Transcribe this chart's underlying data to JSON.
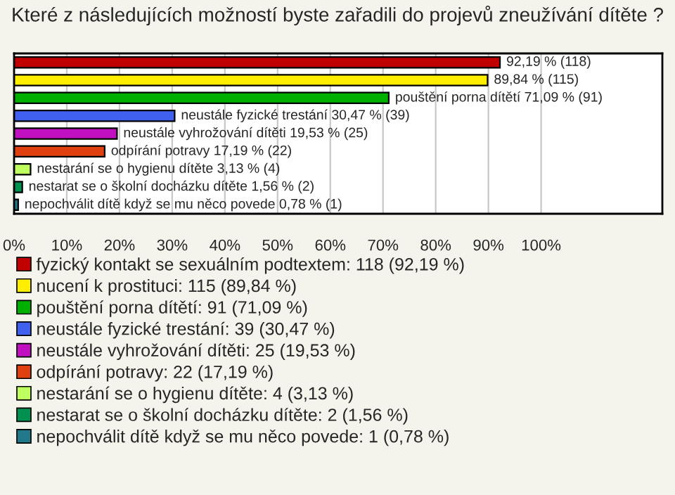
{
  "chart_data": {
    "type": "bar",
    "orientation": "horizontal",
    "title": "Které z následujících možností byste zařadili do projevů zneužívání dítěte ?",
    "categories": [
      null,
      null,
      null,
      null,
      null,
      null,
      null,
      null,
      null
    ],
    "series": [
      {
        "name": "fyzický kontakt se sexuálním podtextem: 118 (92,19 %)",
        "color": "#c00000",
        "values": [
          92.19,
          null,
          null,
          null,
          null,
          null,
          null,
          null,
          null
        ],
        "value_labels": [
          "92,19 % (118)",
          null,
          null,
          null,
          null,
          null,
          null,
          null,
          null
        ]
      },
      {
        "name": "nucení k prostituci: 115 (89,84 %)",
        "color": "#ffee00",
        "values": [
          null,
          89.84,
          null,
          null,
          null,
          null,
          null,
          null,
          null
        ],
        "value_labels": [
          null,
          "89,84 % (115)",
          null,
          null,
          null,
          null,
          null,
          null,
          null
        ]
      },
      {
        "name": "pouštění porna dítětí: 91 (71,09 %)",
        "color": "#00b000",
        "values": [
          null,
          null,
          71.09,
          null,
          null,
          null,
          null,
          null,
          null
        ],
        "value_labels": [
          null,
          null,
          "pouštění porna dítětí 71,09 % (91)",
          null,
          null,
          null,
          null,
          null,
          null
        ]
      },
      {
        "name": "neustále fyzické trestání: 39 (30,47 %)",
        "color": "#4060f0",
        "values": [
          null,
          null,
          null,
          30.47,
          null,
          null,
          null,
          null,
          null
        ],
        "value_labels": [
          null,
          null,
          null,
          "neustále fyzické trestání 30,47 % (39)",
          null,
          null,
          null,
          null,
          null
        ]
      },
      {
        "name": "neustále vyhrožování dítěti: 25 (19,53 %)",
        "color": "#c010c0",
        "values": [
          null,
          null,
          null,
          null,
          19.53,
          null,
          null,
          null,
          null
        ],
        "value_labels": [
          null,
          null,
          null,
          null,
          "neustále vyhrožování dítěti 19,53 % (25)",
          null,
          null,
          null,
          null
        ]
      },
      {
        "name": "odpírání potravy: 22 (17,19 %)",
        "color": "#e04010",
        "values": [
          null,
          null,
          null,
          null,
          null,
          17.19,
          null,
          null,
          null
        ],
        "value_labels": [
          null,
          null,
          null,
          null,
          null,
          "odpírání potravy 17,19 % (22)",
          null,
          null,
          null
        ]
      },
      {
        "name": "nestarání se o hygienu dítěte: 4 (3,13 %)",
        "color": "#c0ff60",
        "values": [
          null,
          null,
          null,
          null,
          null,
          null,
          3.13,
          null,
          null
        ],
        "value_labels": [
          null,
          null,
          null,
          null,
          null,
          null,
          "nestarání se o hygienu dítěte 3,13 % (4)",
          null,
          null
        ]
      },
      {
        "name": "nestarat se o školní docházku dítěte: 2 (1,56 %)",
        "color": "#009050",
        "values": [
          null,
          null,
          null,
          null,
          null,
          null,
          null,
          1.56,
          null
        ],
        "value_labels": [
          null,
          null,
          null,
          null,
          null,
          null,
          null,
          "nestarat se o školní docházku dítěte 1,56 % (2)",
          null
        ]
      },
      {
        "name": "nepochválit dítě když se mu něco povede: 1 (0,78 %)",
        "color": "#207888",
        "values": [
          null,
          null,
          null,
          null,
          null,
          null,
          null,
          null,
          0.78
        ],
        "value_labels": [
          null,
          null,
          null,
          null,
          null,
          null,
          null,
          null,
          "nepochválit dítě když se mu něco povede 0,78 % (1)"
        ]
      }
    ],
    "xlim": [
      0,
      123
    ],
    "xticks": [
      {
        "value": 0,
        "label": "0%"
      },
      {
        "value": 10,
        "label": "10%"
      },
      {
        "value": 20,
        "label": "20%"
      },
      {
        "value": 30,
        "label": "30%"
      },
      {
        "value": 40,
        "label": "40%"
      },
      {
        "value": 50,
        "label": "50%"
      },
      {
        "value": 60,
        "label": "60%"
      },
      {
        "value": 70,
        "label": "70%"
      },
      {
        "value": 80,
        "label": "80%"
      },
      {
        "value": 90,
        "label": "90%"
      },
      {
        "value": 100,
        "label": "100%"
      }
    ],
    "grid": "x",
    "legend": "bottom",
    "tick_labels": "x"
  }
}
